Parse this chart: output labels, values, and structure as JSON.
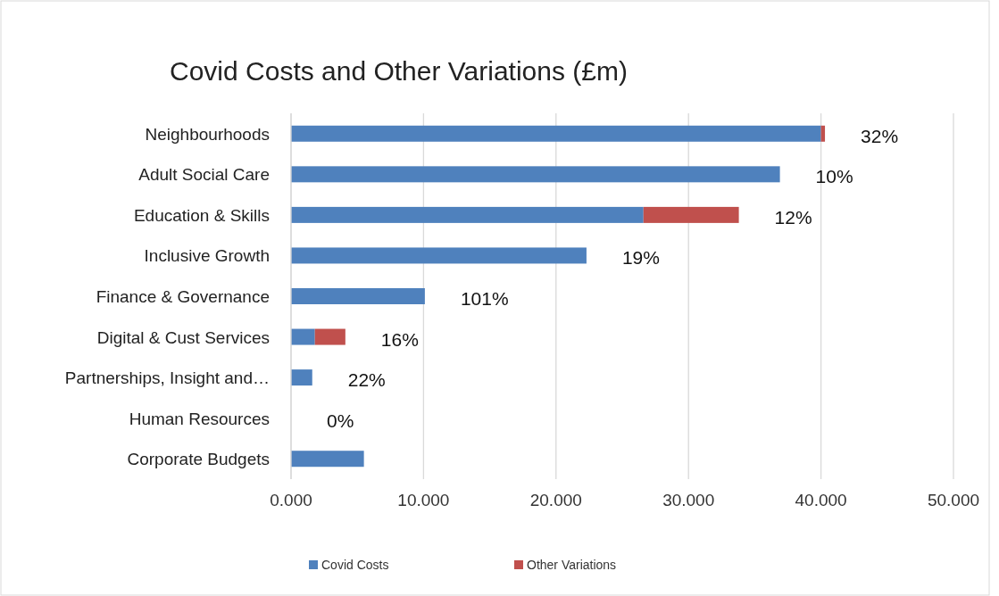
{
  "chart_data": {
    "type": "bar",
    "orientation": "horizontal",
    "stacked": true,
    "title": "Covid Costs and Other Variations (£m)",
    "categories": [
      "Neighbourhoods",
      "Adult Social Care",
      "Education & Skills",
      "Inclusive Growth",
      "Finance & Governance",
      "Digital & Cust Services",
      "Partnerships, Insight and…",
      "Human Resources",
      "Corporate Budgets"
    ],
    "series": [
      {
        "name": "Covid Costs",
        "color": "#4f81bd",
        "values": [
          40.0,
          36.9,
          26.6,
          22.3,
          10.1,
          1.8,
          1.6,
          0,
          5.5
        ]
      },
      {
        "name": "Other Variations",
        "color": "#c0504d",
        "values": [
          0.3,
          0,
          7.2,
          0,
          0,
          2.3,
          0,
          0,
          0
        ]
      }
    ],
    "xlim": [
      0,
      50
    ],
    "xticks": [
      {
        "value": 0,
        "label": "0.000"
      },
      {
        "value": 10,
        "label": "10.000"
      },
      {
        "value": 20,
        "label": "20.000"
      },
      {
        "value": 30,
        "label": "30.000"
      },
      {
        "value": 40,
        "label": "40.000"
      },
      {
        "value": 50,
        "label": "50.000"
      }
    ],
    "grid": "x",
    "legend": "bottom",
    "annotations": [
      "32%",
      "10%",
      "12%",
      "19%",
      "101%",
      "16%",
      "22%",
      "0%"
    ]
  }
}
